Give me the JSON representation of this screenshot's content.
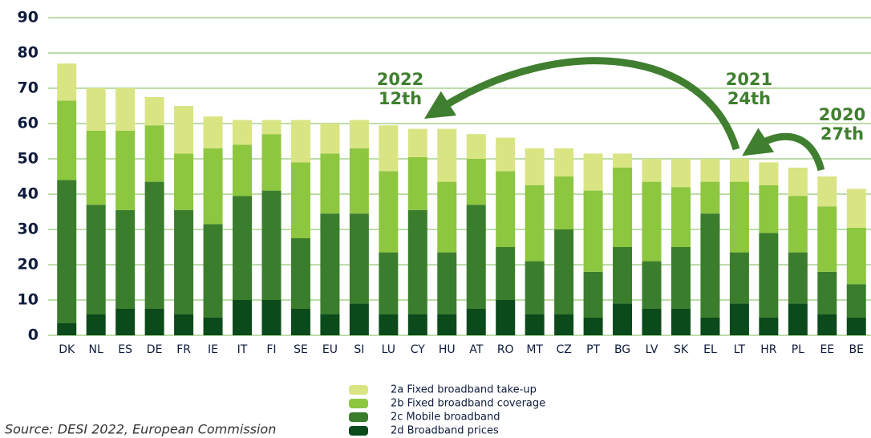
{
  "chart_data": {
    "type": "stacked-bar",
    "categories": [
      "DK",
      "NL",
      "ES",
      "DE",
      "FR",
      "IE",
      "IT",
      "FI",
      "SE",
      "EU",
      "SI",
      "LU",
      "CY",
      "HU",
      "AT",
      "RO",
      "MT",
      "CZ",
      "PT",
      "BG",
      "LV",
      "SK",
      "EL",
      "LT",
      "HR",
      "PL",
      "EE",
      "BE"
    ],
    "series": [
      {
        "name": "2d Broadband prices",
        "color": "#0b4a1a",
        "values": [
          3.5,
          6,
          7.5,
          7.5,
          6,
          5,
          10,
          10,
          7.5,
          6,
          9,
          6,
          6,
          6,
          7.5,
          10,
          6,
          6,
          5,
          9,
          7.5,
          7.5,
          5,
          9,
          5,
          9,
          6,
          5
        ]
      },
      {
        "name": "2c Mobile broadband",
        "color": "#3a7d2c",
        "values": [
          40.5,
          31,
          28,
          36,
          29.5,
          26.5,
          29.5,
          31,
          20,
          28.5,
          25.5,
          17.5,
          29.5,
          17.5,
          29.5,
          15,
          15,
          24,
          13,
          16,
          13.5,
          17.5,
          29.5,
          14.5,
          24,
          14.5,
          12,
          9.5
        ]
      },
      {
        "name": "2b Fixed broadband coverage",
        "color": "#8dc63f",
        "values": [
          22.5,
          21,
          22.5,
          16,
          16,
          21.5,
          14.5,
          16,
          21.5,
          17,
          18.5,
          23,
          15,
          20,
          13,
          21.5,
          21.5,
          15,
          23,
          22.5,
          22.5,
          17,
          9,
          20,
          13.5,
          16,
          18.5,
          16
        ]
      },
      {
        "name": "2a Fixed broadband take-up",
        "color": "#d9e483",
        "values": [
          10.5,
          12,
          12,
          8,
          13.5,
          9,
          7,
          4,
          12,
          8.5,
          8,
          13,
          8,
          15,
          7,
          9.5,
          10.5,
          8,
          10.5,
          4,
          6.5,
          8,
          6.5,
          6.5,
          6.5,
          8,
          8.5,
          11
        ]
      }
    ],
    "ylim": [
      0,
      90
    ],
    "yticks": [
      0,
      10,
      20,
      30,
      40,
      50,
      60,
      70,
      80,
      90
    ],
    "grid": true,
    "grid_color": "#a9d18e",
    "annotations": [
      [
        "2022",
        "12th"
      ],
      [
        "2021",
        "24th"
      ],
      [
        "2020",
        "27th"
      ]
    ],
    "source": "Source: DESI 2022, European Commission"
  }
}
